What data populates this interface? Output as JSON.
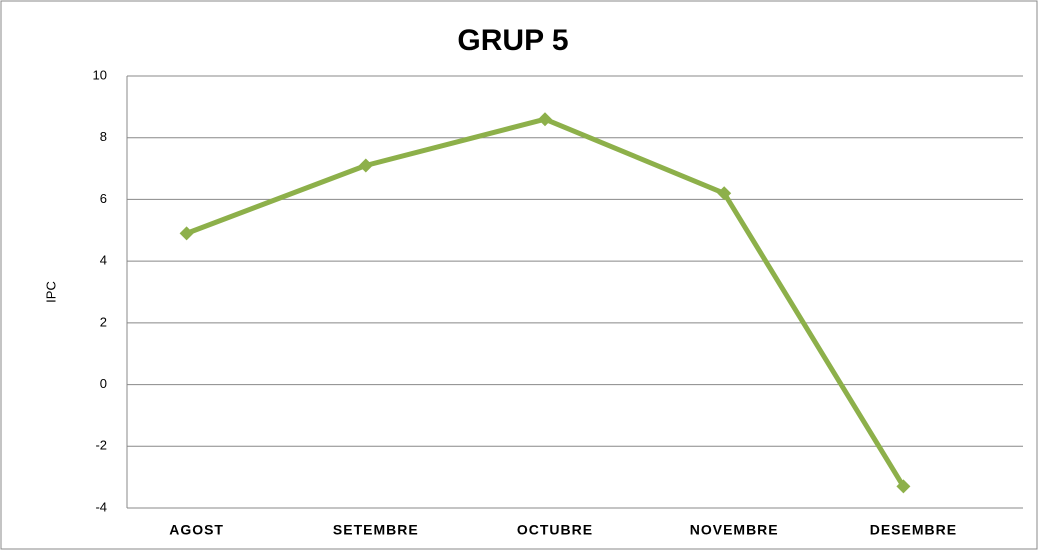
{
  "chart_data": {
    "type": "line",
    "title": "GRUP 5",
    "y_label": "IPC",
    "categories": [
      "AGOST",
      "SETEMBRE",
      "OCTUBRE",
      "NOVEMBRE",
      "DESEMBRE"
    ],
    "series": [
      {
        "name": "IPC",
        "color": "#8db04a",
        "values": [
          4.9,
          7.1,
          8.6,
          6.2,
          -3.3
        ]
      }
    ],
    "ylim": [
      -4,
      10
    ],
    "yticks": [
      -4,
      -2,
      0,
      2,
      4,
      6,
      8,
      10
    ],
    "grid": true
  }
}
